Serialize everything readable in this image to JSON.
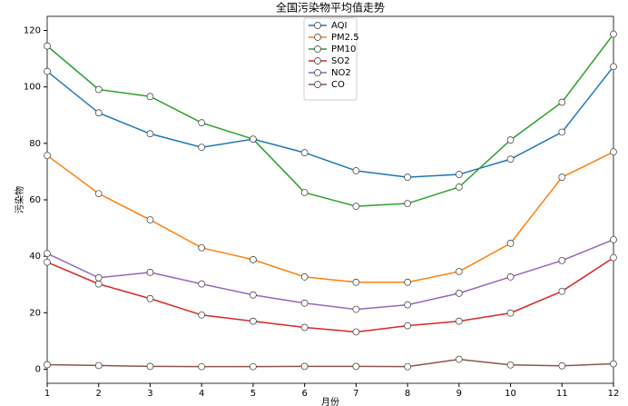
{
  "chart_data": {
    "type": "line",
    "title": "全国污染物平均值走势",
    "x_label": "月份",
    "y_label": "污染物",
    "x": [
      1,
      2,
      3,
      4,
      5,
      6,
      7,
      8,
      9,
      10,
      11,
      12
    ],
    "xlim": [
      1,
      12
    ],
    "xticks": [
      1,
      2,
      3,
      4,
      5,
      6,
      7,
      8,
      9,
      10,
      11,
      12
    ],
    "ylim": [
      -5,
      125
    ],
    "yticks": [
      0,
      20,
      40,
      60,
      80,
      100,
      120
    ],
    "legend": "upper center",
    "marker_fill": "#ffffff",
    "series": [
      {
        "name": "AQI",
        "color": "#1f77b4",
        "values": [
          105.5,
          90.8,
          83.4,
          78.6,
          81.5,
          76.7,
          70.3,
          68,
          69,
          74.4,
          84,
          107.2
        ]
      },
      {
        "name": "PM2.5",
        "color": "#ff7f0e",
        "values": [
          75.7,
          62.2,
          52.9,
          43,
          38.8,
          32.7,
          30.8,
          30.8,
          34.6,
          44.6,
          68,
          77
        ]
      },
      {
        "name": "PM10",
        "color": "#2ca02c",
        "values": [
          114.5,
          99.1,
          96.6,
          87.3,
          81.5,
          62.6,
          57.7,
          58.7,
          64.5,
          81.2,
          94.6,
          118.7
        ]
      },
      {
        "name": "SO2",
        "color": "#d62728",
        "values": [
          37.9,
          30.2,
          25,
          19.2,
          17,
          14.8,
          13.2,
          15.4,
          17,
          19.9,
          27.6,
          39.5
        ]
      },
      {
        "name": "NO2",
        "color": "#9467bd",
        "values": [
          41,
          32.4,
          34.3,
          30.2,
          26.3,
          23.4,
          21.2,
          22.8,
          26.9,
          32.7,
          38.5,
          45.9
        ]
      },
      {
        "name": "CO",
        "color": "#8c564b",
        "values": [
          1.6,
          1.3,
          1.0,
          0.9,
          0.9,
          1,
          1,
          0.9,
          3.5,
          1.5,
          1.2,
          1.9
        ]
      }
    ]
  }
}
